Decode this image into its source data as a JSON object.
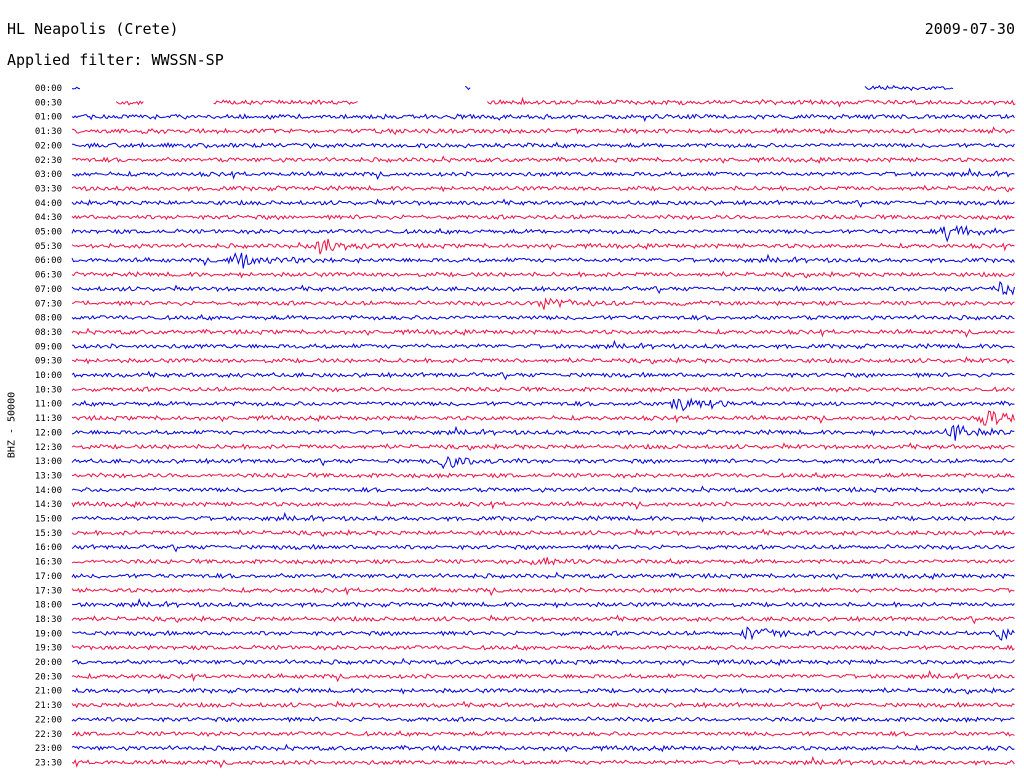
{
  "header": {
    "station": "HL Neapolis (Crete)",
    "date": "2009-07-30",
    "filter": "Applied filter: WWSSN-SP"
  },
  "channel_label": "BHZ - 50000",
  "colors": {
    "trace_a": "#0000dd",
    "trace_b": "#ee1144",
    "text": "#000000"
  },
  "chart_data": {
    "type": "line",
    "ylabel": "BHZ - 50000",
    "rows": [
      "00:00",
      "00:30",
      "01:00",
      "01:30",
      "02:00",
      "02:30",
      "03:00",
      "03:30",
      "04:00",
      "04:30",
      "05:00",
      "05:30",
      "06:00",
      "06:30",
      "07:00",
      "07:30",
      "08:00",
      "08:30",
      "09:00",
      "09:30",
      "10:00",
      "10:30",
      "11:00",
      "11:30",
      "12:00",
      "12:30",
      "13:00",
      "13:30",
      "14:00",
      "14:30",
      "15:00",
      "15:30",
      "16:00",
      "16:30",
      "17:00",
      "17:30",
      "18:00",
      "18:30",
      "19:00",
      "19:30",
      "20:00",
      "20:30",
      "21:00",
      "21:30",
      "22:00",
      "22:30",
      "23:00",
      "23:30"
    ],
    "data_gaps": [
      {
        "row": "00:00",
        "segments_min": [
          [
            0,
            0.3
          ],
          [
            12.5,
            12.7
          ],
          [
            25.2,
            28
          ]
        ]
      },
      {
        "row": "00:30",
        "segments_min": [
          [
            1.4,
            2.3
          ],
          [
            4.5,
            9.1
          ],
          [
            13.2,
            30
          ]
        ]
      }
    ],
    "events": [
      {
        "row": "05:00",
        "time_min": 27.8,
        "amplitude": 0.8
      },
      {
        "row": "05:30",
        "time_min": 7.8,
        "amplitude": 0.7
      },
      {
        "row": "06:00",
        "time_min": 5.2,
        "amplitude": 1.0
      },
      {
        "row": "07:00",
        "time_min": 29.5,
        "amplitude": 0.6
      },
      {
        "row": "07:30",
        "time_min": 15.0,
        "amplitude": 0.6
      },
      {
        "row": "11:00",
        "time_min": 19.2,
        "amplitude": 0.9
      },
      {
        "row": "11:30",
        "time_min": 29.0,
        "amplitude": 1.0
      },
      {
        "row": "12:00",
        "time_min": 28.0,
        "amplitude": 0.9
      },
      {
        "row": "13:00",
        "time_min": 11.8,
        "amplitude": 0.5
      },
      {
        "row": "19:00",
        "time_min": 21.5,
        "amplitude": 0.9
      },
      {
        "row": "19:00",
        "time_min": 29.5,
        "amplitude": 0.6
      },
      {
        "row": "16:30",
        "time_min": 14.8,
        "amplitude": 0.4
      }
    ]
  }
}
